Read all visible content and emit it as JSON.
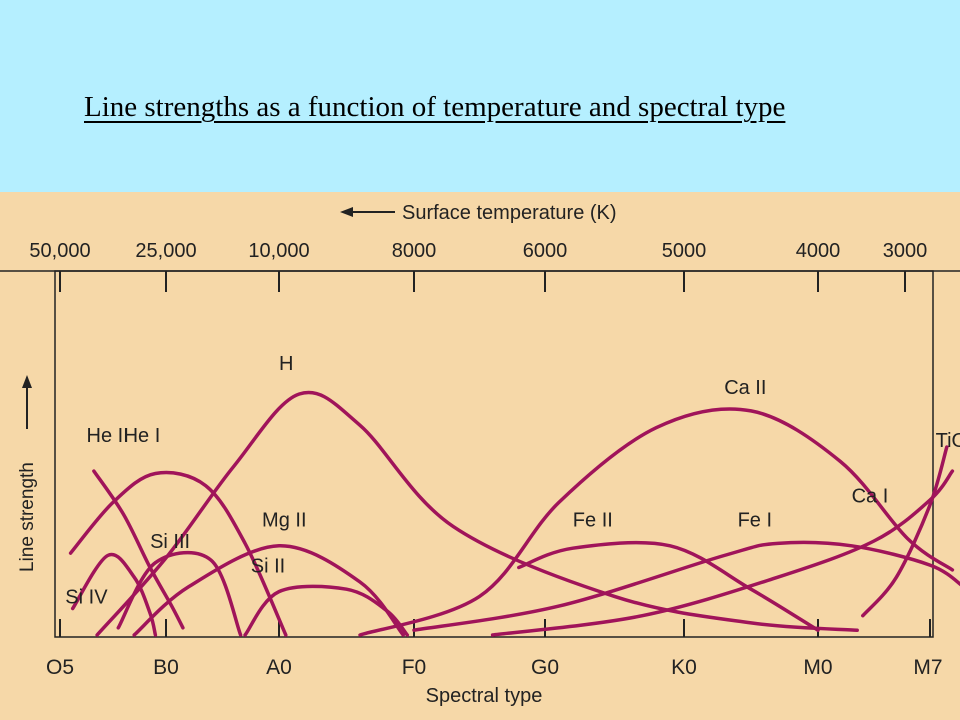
{
  "slide": {
    "title": "Line strengths as a function of temperature and spectral type"
  },
  "colors": {
    "header_bg": "#b5efff",
    "figure_bg": "#f6d8a8",
    "curve": "#a0145a",
    "axis": "#222222"
  },
  "chart_data": {
    "type": "line",
    "xlabel": "Spectral type",
    "ylabel": "Line strength",
    "top_axis_label": "Surface temperature (K)",
    "spectral_types": [
      "O5",
      "B0",
      "A0",
      "F0",
      "G0",
      "K0",
      "M0",
      "M7"
    ],
    "temperatures": [
      "50,000",
      "25,000",
      "10,000",
      "8000",
      "6000",
      "5000",
      "4000",
      "3000"
    ],
    "series": [
      {
        "name": "He II",
        "points": [
          [
            0.32,
            0.68
          ],
          [
            0.6,
            0.5
          ],
          [
            0.85,
            0.28
          ],
          [
            1.05,
            0.12
          ],
          [
            1.15,
            0.03
          ]
        ]
      },
      {
        "name": "He I",
        "points": [
          [
            0.1,
            0.34
          ],
          [
            0.5,
            0.55
          ],
          [
            0.9,
            0.67
          ],
          [
            1.35,
            0.62
          ],
          [
            1.7,
            0.38
          ],
          [
            2.05,
            0.0
          ]
        ]
      },
      {
        "name": "H",
        "points": [
          [
            0.35,
            0.0
          ],
          [
            1.0,
            0.32
          ],
          [
            1.6,
            0.7
          ],
          [
            2.15,
            1.0
          ],
          [
            2.6,
            0.87
          ],
          [
            3.3,
            0.45
          ],
          [
            4.5,
            0.16
          ],
          [
            5.5,
            0.05
          ],
          [
            6.35,
            0.02
          ]
        ]
      },
      {
        "name": "Si IV",
        "points": [
          [
            0.12,
            0.11
          ],
          [
            0.45,
            0.33
          ],
          [
            0.7,
            0.24
          ],
          [
            0.85,
            0.09
          ],
          [
            0.9,
            0.0
          ]
        ]
      },
      {
        "name": "Si III",
        "points": [
          [
            0.55,
            0.03
          ],
          [
            0.9,
            0.3
          ],
          [
            1.4,
            0.31
          ],
          [
            1.66,
            0.0
          ]
        ]
      },
      {
        "name": "Mg II",
        "points": [
          [
            0.7,
            0.0
          ],
          [
            1.2,
            0.2
          ],
          [
            2.0,
            0.37
          ],
          [
            2.6,
            0.22
          ],
          [
            2.92,
            0.0
          ]
        ]
      },
      {
        "name": "Si II",
        "points": [
          [
            1.7,
            0.0
          ],
          [
            2.0,
            0.18
          ],
          [
            2.5,
            0.19
          ],
          [
            2.8,
            0.1
          ],
          [
            2.95,
            0.0
          ]
        ]
      },
      {
        "name": "Ca II",
        "points": [
          [
            2.6,
            0.0
          ],
          [
            3.5,
            0.16
          ],
          [
            4.1,
            0.55
          ],
          [
            4.8,
            0.86
          ],
          [
            5.5,
            0.93
          ],
          [
            6.2,
            0.72
          ],
          [
            6.8,
            0.4
          ],
          [
            7.2,
            0.27
          ]
        ]
      },
      {
        "name": "Fe II",
        "points": [
          [
            3.8,
            0.28
          ],
          [
            4.2,
            0.36
          ],
          [
            4.9,
            0.37
          ],
          [
            5.5,
            0.19
          ],
          [
            6.0,
            0.02
          ]
        ]
      },
      {
        "name": "Fe I",
        "points": [
          [
            3.0,
            0.02
          ],
          [
            4.1,
            0.12
          ],
          [
            5.3,
            0.33
          ],
          [
            5.7,
            0.38
          ],
          [
            6.3,
            0.37
          ],
          [
            7.0,
            0.29
          ],
          [
            7.3,
            0.2
          ]
        ]
      },
      {
        "name": "Ca I",
        "points": [
          [
            3.6,
            0.0
          ],
          [
            4.7,
            0.08
          ],
          [
            5.7,
            0.24
          ],
          [
            6.5,
            0.39
          ],
          [
            7.0,
            0.56
          ],
          [
            7.2,
            0.68
          ]
        ]
      },
      {
        "name": "TiO",
        "points": [
          [
            6.4,
            0.08
          ],
          [
            6.7,
            0.24
          ],
          [
            7.0,
            0.54
          ],
          [
            7.15,
            0.78
          ]
        ]
      }
    ],
    "series_labels": [
      {
        "name": "He II",
        "x": 0.25,
        "y": 0.8
      },
      {
        "name": "He I",
        "x": 0.6,
        "y": 0.8
      },
      {
        "name": "H",
        "x": 2.0,
        "y": 1.1
      },
      {
        "name": "Si IV",
        "x": 0.05,
        "y": 0.13
      },
      {
        "name": "Si III",
        "x": 0.85,
        "y": 0.36
      },
      {
        "name": "Mg II",
        "x": 1.85,
        "y": 0.45
      },
      {
        "name": "Si II",
        "x": 1.75,
        "y": 0.26
      },
      {
        "name": "Ca II",
        "x": 5.3,
        "y": 1.0
      },
      {
        "name": "Fe II",
        "x": 4.2,
        "y": 0.45
      },
      {
        "name": "Fe I",
        "x": 5.4,
        "y": 0.45
      },
      {
        "name": "Ca I",
        "x": 6.3,
        "y": 0.55
      },
      {
        "name": "TiO",
        "x": 7.05,
        "y": 0.78
      }
    ]
  }
}
